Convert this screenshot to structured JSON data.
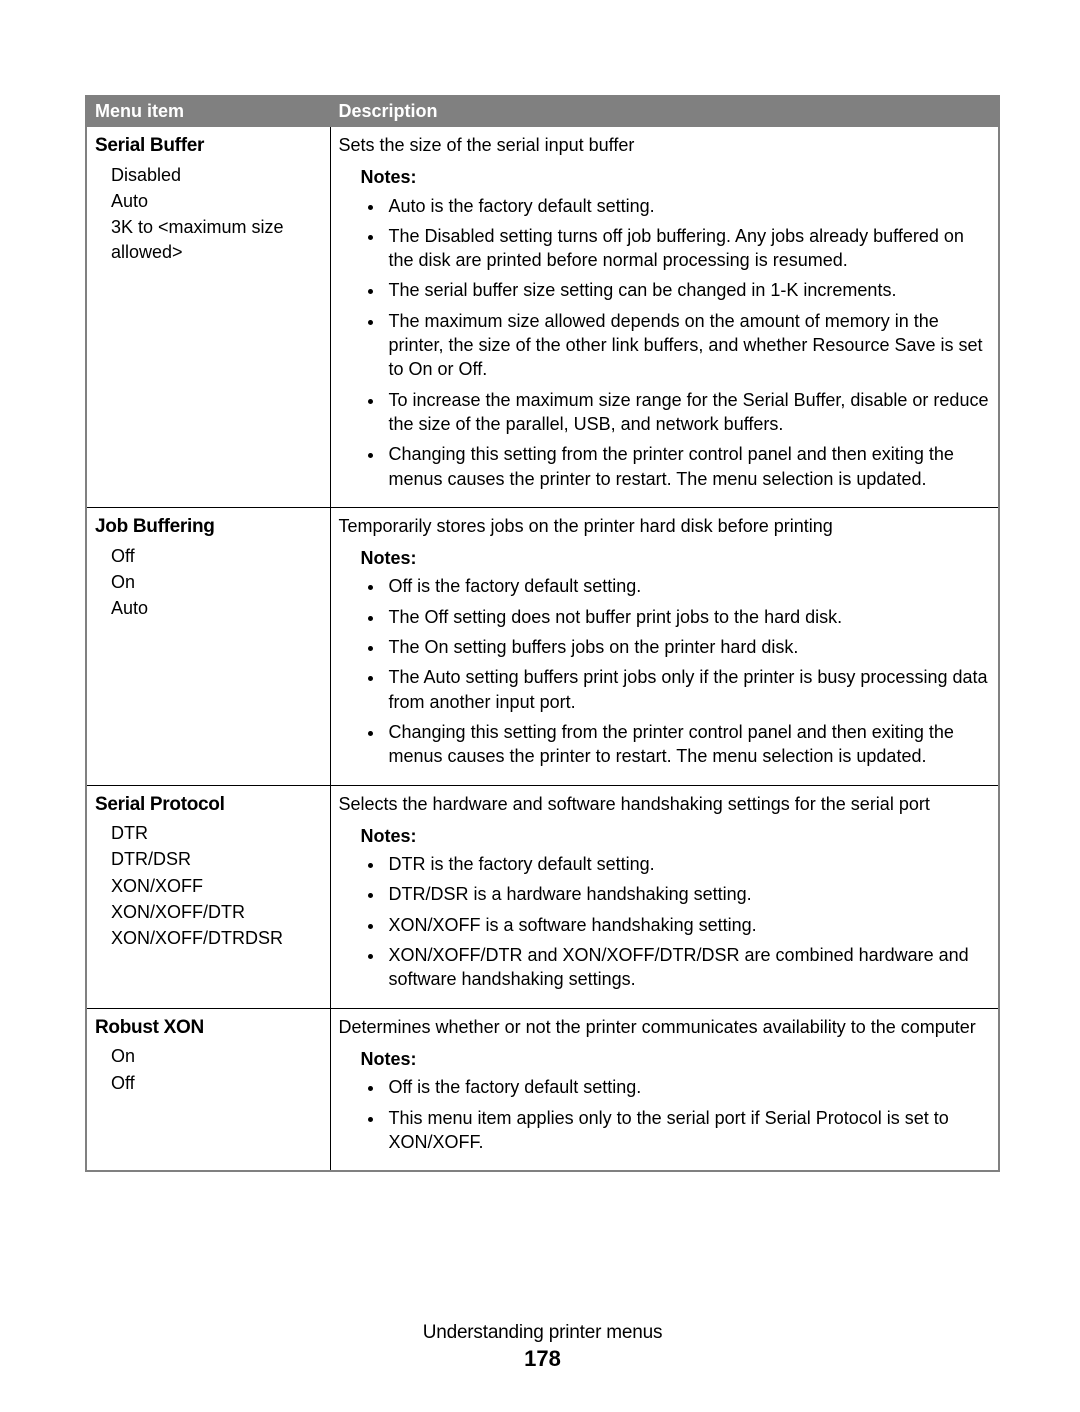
{
  "header": {
    "col1": "Menu item",
    "col2": "Description"
  },
  "rows": [
    {
      "title": "Serial Buffer",
      "options": [
        "Disabled",
        "Auto",
        "3K to <maximum size allowed>"
      ],
      "intro": "Sets the size of the serial input buffer",
      "notes_label": "Notes:",
      "notes": [
        "Auto is the factory default setting.",
        "The Disabled setting turns off job buffering. Any jobs already buffered on the disk are printed before normal processing is resumed.",
        "The serial buffer size setting can be changed in 1-K increments.",
        "The maximum size allowed depends on the amount of memory in the printer, the size of the other link buffers, and whether Resource Save is set to On or Off.",
        "To increase the maximum size range for the Serial Buffer, disable or reduce the size of the parallel, USB, and network buffers.",
        "Changing this setting from the printer control panel and then exiting the menus causes the printer to restart. The menu selection is updated."
      ]
    },
    {
      "title": "Job Buffering",
      "options": [
        "Off",
        "On",
        "Auto"
      ],
      "intro": "Temporarily stores jobs on the printer hard disk before printing",
      "notes_label": "Notes:",
      "notes": [
        "Off is the factory default setting.",
        "The Off setting does not buffer print jobs to the hard disk.",
        "The On setting buffers jobs on the printer hard disk.",
        "The Auto setting buffers print jobs only if the printer is busy processing data from another input port.",
        "Changing this setting from the printer control panel and then exiting the menus causes the printer to restart. The menu selection is updated."
      ]
    },
    {
      "title": "Serial Protocol",
      "options": [
        "DTR",
        "DTR/DSR",
        "XON/XOFF",
        "XON/XOFF/DTR",
        "XON/XOFF/DTRDSR"
      ],
      "intro": "Selects the hardware and software handshaking settings for the serial port",
      "notes_label": "Notes:",
      "notes": [
        "DTR is the factory default setting.",
        "DTR/DSR is a hardware handshaking setting.",
        "XON/XOFF is a software handshaking setting.",
        "XON/XOFF/DTR and XON/XOFF/DTR/DSR are combined hardware and software handshaking settings."
      ]
    },
    {
      "title": "Robust XON",
      "options": [
        "On",
        "Off"
      ],
      "intro": "Determines whether or not the printer communicates availability to the computer",
      "notes_label": "Notes:",
      "notes": [
        "Off is the factory default setting.",
        "This menu item applies only to the serial port if Serial Protocol is set to XON/XOFF."
      ]
    }
  ],
  "footer": {
    "title": "Understanding printer menus",
    "page": "178"
  }
}
